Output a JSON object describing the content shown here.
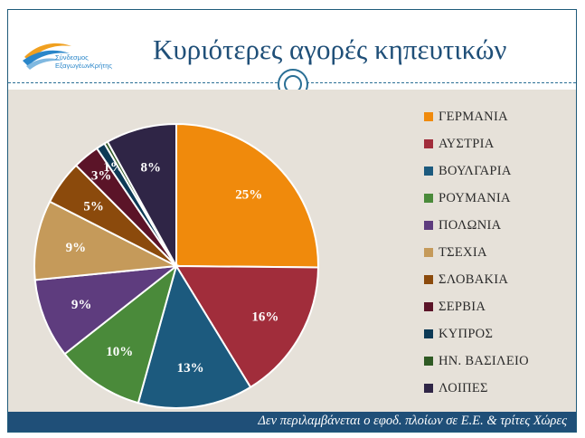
{
  "header": {
    "title": "Κυριότερες αγορές κηπευτικών",
    "logo_line1": "Σύνδεσμος",
    "logo_line2": "ΕξαγωγέωνΚρήτης"
  },
  "footer": {
    "note": "Δεν περιλαμβάνεται ο εφοδ. πλοίων σε Ε.Ε. & τρίτες Χώρες"
  },
  "chart_data": {
    "type": "pie",
    "title": "Κυριότερες αγορές κηπευτικών",
    "start": "12 o'clock",
    "direction": "clockwise",
    "legend_position": "right",
    "slices": [
      {
        "name": "ΓΕΡΜΑΝΙΑ",
        "value": 25,
        "label": "25%",
        "color": "#f08a0c"
      },
      {
        "name": "ΑΥΣΤΡΙΑ",
        "value": 16,
        "label": "16%",
        "color": "#a12d3b"
      },
      {
        "name": "ΒΟΥΛΓΑΡΙΑ",
        "value": 13,
        "label": "13%",
        "color": "#1c5a7e"
      },
      {
        "name": "ΡΟΥΜΑΝΙΑ",
        "value": 10,
        "label": "10%",
        "color": "#4a8a3a"
      },
      {
        "name": "ΠΟΛΩΝΙΑ",
        "value": 9,
        "label": "9%",
        "color": "#5e3c7e"
      },
      {
        "name": "ΤΣΕΧΙΑ",
        "value": 9,
        "label": "9%",
        "color": "#c59a5a"
      },
      {
        "name": "ΣΛΟΒΑΚΙΑ",
        "value": 5,
        "label": "5%",
        "color": "#8b4a0c"
      },
      {
        "name": "ΣΕΡΒΙΑ",
        "value": 3,
        "label": "3%",
        "color": "#5b1428"
      },
      {
        "name": "ΚΥΠΡΟΣ",
        "value": 1,
        "label": "1%",
        "color": "#0d3a56"
      },
      {
        "name": "ΗΝ. ΒΑΣΙΛΕΙΟ",
        "value": 0.4,
        "label": "",
        "color": "#2f5a24"
      },
      {
        "name": "ΛΟΙΠΕΣ",
        "value": 8,
        "label": "8%",
        "color": "#2f2546"
      }
    ]
  }
}
